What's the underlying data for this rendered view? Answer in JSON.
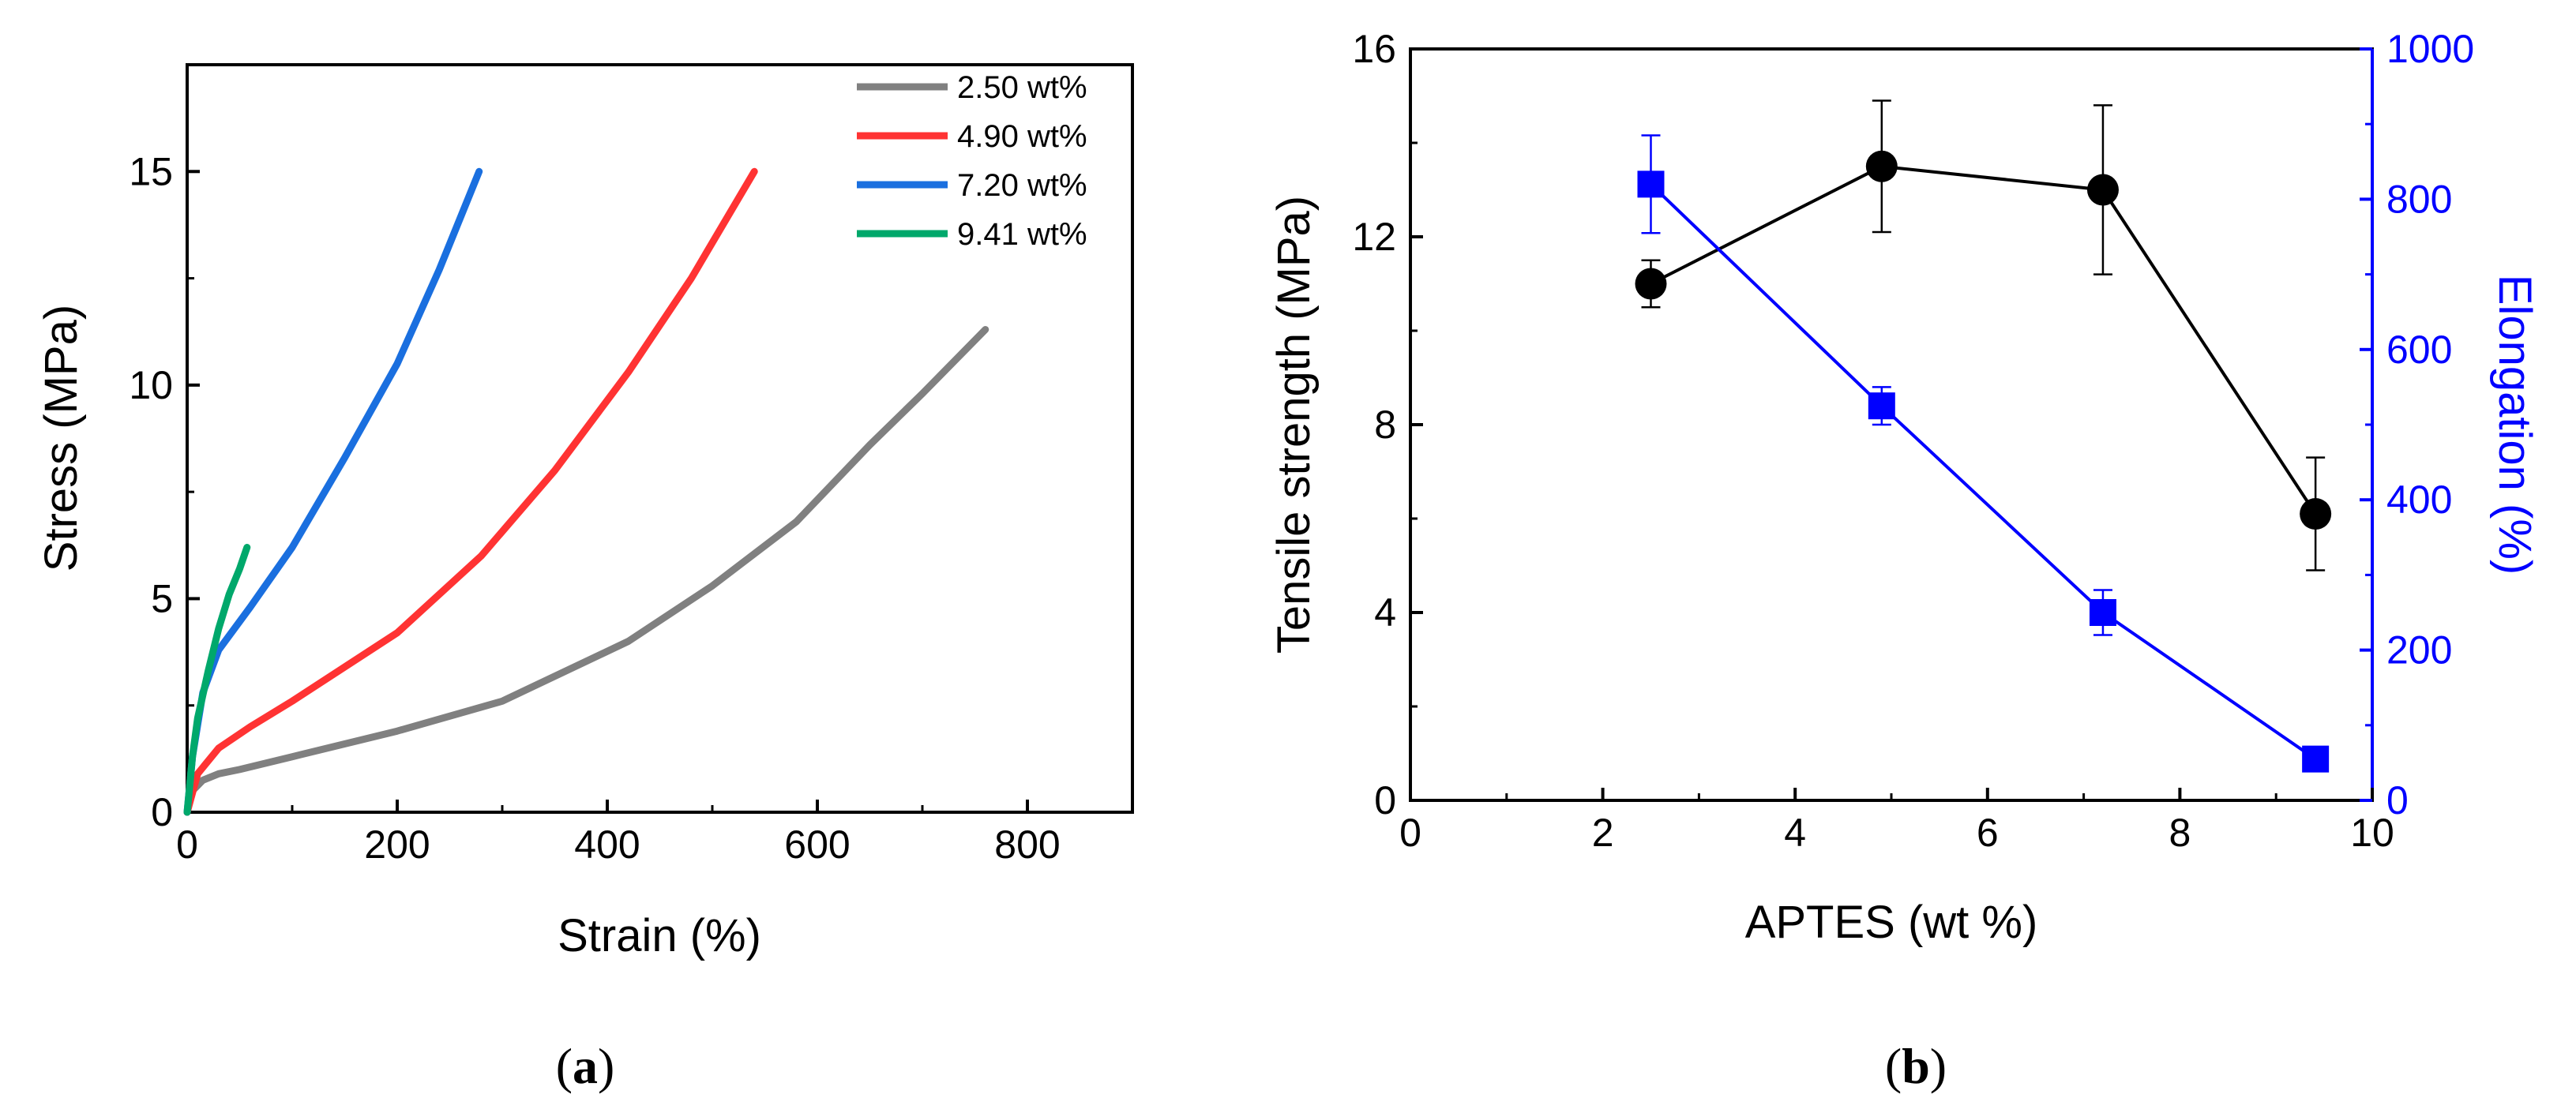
{
  "chart_data": [
    {
      "type": "line",
      "panel_label": "(a)",
      "panel_letter": "a",
      "xlabel": "Strain (%)",
      "ylabel": "Stress (MPa)",
      "xlim": [
        0,
        900
      ],
      "ylim": [
        0,
        17.5
      ],
      "xticks": [
        0,
        200,
        400,
        600,
        800
      ],
      "yticks": [
        0,
        5,
        10,
        15
      ],
      "legend_position": "top-right",
      "series": [
        {
          "name": "2.50 wt%",
          "color": "#808080",
          "x": [
            0,
            5,
            15,
            30,
            50,
            100,
            200,
            300,
            420,
            500,
            580,
            650,
            700,
            760
          ],
          "y": [
            0,
            0.5,
            0.75,
            0.9,
            1.0,
            1.3,
            1.9,
            2.6,
            4.0,
            5.3,
            6.8,
            8.6,
            9.8,
            11.3
          ]
        },
        {
          "name": "4.90 wt%",
          "color": "#ff3333",
          "x": [
            0,
            10,
            30,
            60,
            100,
            200,
            280,
            350,
            420,
            480,
            540
          ],
          "y": [
            0,
            0.9,
            1.5,
            2.0,
            2.6,
            4.2,
            6.0,
            8.0,
            10.3,
            12.5,
            15.0
          ]
        },
        {
          "name": "7.20 wt%",
          "color": "#1a6fdf",
          "x": [
            0,
            5,
            15,
            30,
            60,
            100,
            150,
            200,
            240,
            278
          ],
          "y": [
            0,
            1.3,
            2.8,
            3.8,
            4.8,
            6.2,
            8.3,
            10.5,
            12.7,
            15.0
          ]
        },
        {
          "name": "9.41 wt%",
          "color": "#00a86b",
          "x": [
            0,
            5,
            10,
            20,
            30,
            40,
            50,
            57
          ],
          "y": [
            0,
            1.3,
            2.2,
            3.3,
            4.3,
            5.1,
            5.7,
            6.2
          ]
        }
      ]
    },
    {
      "type": "line",
      "panel_label": "(b)",
      "panel_letter": "b",
      "xlabel": "APTES (wt %)",
      "ylabel": "Tensile strength (MPa)",
      "ylabel_right": "Elongation (%)",
      "xlim": [
        0,
        10
      ],
      "ylim": [
        0,
        16
      ],
      "ylim_right": [
        0,
        1000
      ],
      "xticks": [
        0,
        2,
        4,
        6,
        8,
        10
      ],
      "yticks": [
        0,
        4,
        8,
        12,
        16
      ],
      "yticks_right": [
        0,
        200,
        400,
        600,
        800,
        1000
      ],
      "series": [
        {
          "name": "Tensile strength",
          "axis": "left",
          "color": "#000000",
          "marker": "circle",
          "x": [
            2.5,
            4.9,
            7.2,
            9.41
          ],
          "y": [
            11.0,
            13.5,
            13.0,
            6.1
          ],
          "err": [
            0.5,
            1.4,
            1.8,
            1.2
          ]
        },
        {
          "name": "Elongation",
          "axis": "right",
          "color": "#0000ff",
          "marker": "square",
          "x": [
            2.5,
            4.9,
            7.2,
            9.41
          ],
          "y": [
            820,
            525,
            250,
            55
          ],
          "err": [
            65,
            25,
            30,
            0
          ]
        }
      ]
    }
  ]
}
